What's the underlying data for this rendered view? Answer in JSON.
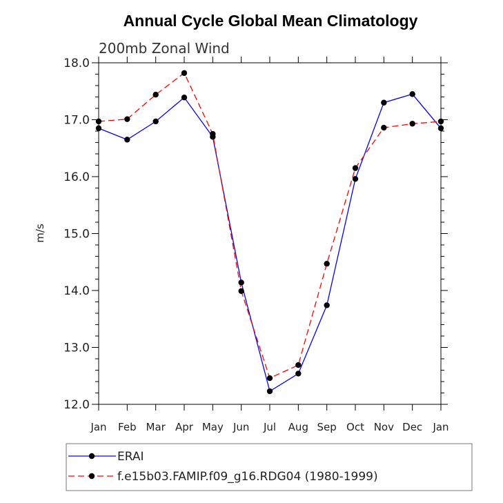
{
  "chart_data": {
    "type": "line",
    "title": "Annual Cycle Global Mean Climatology",
    "subtitle": "200mb Zonal Wind",
    "ylabel": "m/s",
    "xlabel": "",
    "ylim": [
      12.0,
      18.0
    ],
    "yticks": [
      "12.0",
      "13.0",
      "14.0",
      "15.0",
      "16.0",
      "17.0",
      "18.0"
    ],
    "categories": [
      "Jan",
      "Feb",
      "Mar",
      "Apr",
      "May",
      "Jun",
      "Jul",
      "Aug",
      "Sep",
      "Oct",
      "Nov",
      "Dec",
      "Jan"
    ],
    "grid": false,
    "legend_position": "bottom",
    "series": [
      {
        "name": "ERAI",
        "color": "#0000ff",
        "line_style": "solid",
        "marker": "filled-circle",
        "values": [
          16.85,
          16.65,
          16.97,
          17.39,
          16.7,
          14.14,
          12.23,
          12.54,
          13.74,
          15.96,
          17.3,
          17.45,
          16.85
        ]
      },
      {
        "name": "f.e15b03.FAMIP.f09_g16.RDG04 (1980-1999)",
        "color": "#ff0000",
        "line_style": "dashed",
        "marker": "filled-circle",
        "values": [
          16.97,
          17.01,
          17.44,
          17.82,
          16.75,
          13.99,
          12.46,
          12.69,
          14.47,
          16.15,
          16.86,
          16.93,
          16.97
        ]
      }
    ]
  }
}
